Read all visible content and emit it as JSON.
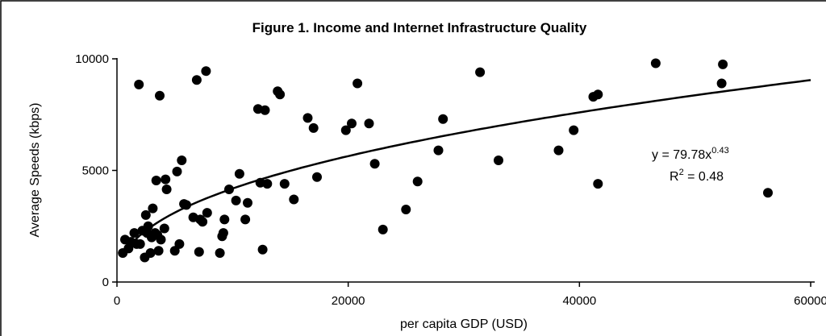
{
  "chart_data": {
    "type": "scatter",
    "title": "Figure 1. Income and Internet Infrastructure Quality",
    "xlabel": "per capita GDP (USD)",
    "ylabel": "Average Speeds (kbps)",
    "xlim": [
      0,
      60000
    ],
    "ylim": [
      0,
      10000
    ],
    "x_ticks": [
      "0",
      "20000",
      "40000",
      "60000"
    ],
    "y_ticks": [
      "0",
      "5000",
      "10000"
    ],
    "grid": false,
    "trendline": {
      "type": "power",
      "a": 79.78,
      "b": 0.43,
      "equation_prefix": "y = 79.78x",
      "equation_exponent": "0.43",
      "r2_prefix": "R",
      "r2_exponent": "2",
      "r2_suffix": " = 0.48"
    },
    "points": [
      [
        500,
        1300
      ],
      [
        700,
        1900
      ],
      [
        1000,
        1500
      ],
      [
        1200,
        1800
      ],
      [
        1500,
        2200
      ],
      [
        1700,
        1700
      ],
      [
        1900,
        8850
      ],
      [
        2000,
        1700
      ],
      [
        2200,
        2300
      ],
      [
        2400,
        1100
      ],
      [
        2500,
        3000
      ],
      [
        2600,
        2200
      ],
      [
        2700,
        2500
      ],
      [
        2900,
        1300
      ],
      [
        3000,
        2000
      ],
      [
        3100,
        3300
      ],
      [
        3300,
        2200
      ],
      [
        3400,
        4550
      ],
      [
        3500,
        2100
      ],
      [
        3600,
        1400
      ],
      [
        3700,
        8350
      ],
      [
        3800,
        1900
      ],
      [
        4100,
        2400
      ],
      [
        4200,
        4600
      ],
      [
        4300,
        4150
      ],
      [
        5000,
        1400
      ],
      [
        5200,
        4950
      ],
      [
        5400,
        1700
      ],
      [
        5600,
        5450
      ],
      [
        5800,
        3500
      ],
      [
        6000,
        3450
      ],
      [
        6600,
        2900
      ],
      [
        6900,
        9050
      ],
      [
        7100,
        1350
      ],
      [
        7200,
        2800
      ],
      [
        7400,
        2700
      ],
      [
        7700,
        9450
      ],
      [
        7800,
        3100
      ],
      [
        8900,
        1300
      ],
      [
        9100,
        2050
      ],
      [
        9200,
        2200
      ],
      [
        9300,
        2800
      ],
      [
        9700,
        4150
      ],
      [
        10300,
        3650
      ],
      [
        10600,
        4850
      ],
      [
        11100,
        2800
      ],
      [
        11300,
        3550
      ],
      [
        12200,
        7750
      ],
      [
        12400,
        4450
      ],
      [
        12600,
        1450
      ],
      [
        12800,
        7700
      ],
      [
        13000,
        4400
      ],
      [
        13900,
        8550
      ],
      [
        14100,
        8400
      ],
      [
        14500,
        4400
      ],
      [
        15300,
        3700
      ],
      [
        16500,
        7350
      ],
      [
        17000,
        6900
      ],
      [
        17300,
        4700
      ],
      [
        19800,
        6800
      ],
      [
        20300,
        7100
      ],
      [
        20800,
        8900
      ],
      [
        21800,
        7100
      ],
      [
        22300,
        5300
      ],
      [
        23000,
        2350
      ],
      [
        25000,
        3250
      ],
      [
        26000,
        4500
      ],
      [
        27800,
        5900
      ],
      [
        28200,
        7300
      ],
      [
        31400,
        9400
      ],
      [
        33000,
        5450
      ],
      [
        38200,
        5900
      ],
      [
        39500,
        6800
      ],
      [
        41200,
        8300
      ],
      [
        41600,
        8400
      ],
      [
        41600,
        4400
      ],
      [
        46600,
        9800
      ],
      [
        52300,
        8900
      ],
      [
        52400,
        9750
      ],
      [
        56300,
        4000
      ]
    ]
  }
}
